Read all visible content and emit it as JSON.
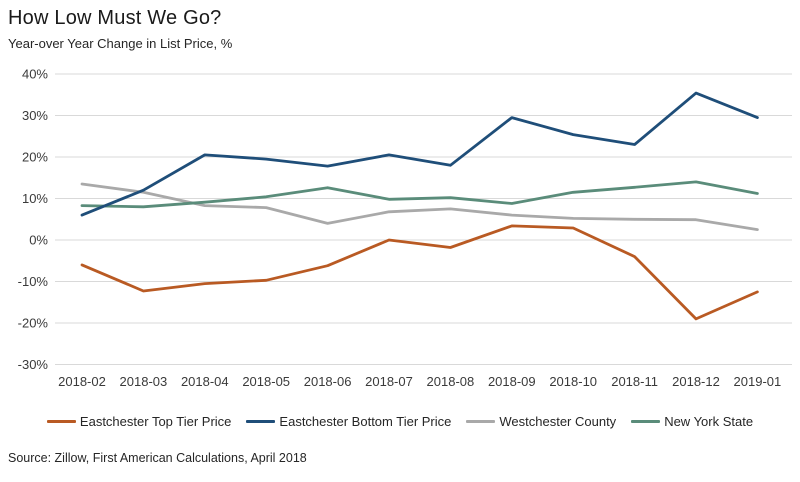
{
  "header": {
    "title": "How Low Must We Go?",
    "subtitle": "Year-over Year Change in List Price, %"
  },
  "chart_data": {
    "type": "line",
    "title": "How Low Must We Go?",
    "subtitle": "Year-over Year Change in List Price, %",
    "xlabel": "",
    "ylabel": "Year-over Year Change in List Price, %",
    "categories": [
      "2018-02",
      "2018-03",
      "2018-04",
      "2018-05",
      "2018-06",
      "2018-07",
      "2018-08",
      "2018-09",
      "2018-10",
      "2018-11",
      "2018-12",
      "2019-01"
    ],
    "series": [
      {
        "name": "Eastchester Top Tier Price",
        "color": "#B95A23",
        "values": [
          -6.0,
          -12.3,
          -10.5,
          -9.7,
          -6.2,
          0.0,
          -1.8,
          3.4,
          2.9,
          -4.0,
          -19.0,
          -12.5
        ]
      },
      {
        "name": "Eastchester Bottom Tier Price",
        "color": "#1F4E79",
        "values": [
          6.0,
          12.0,
          20.5,
          19.5,
          17.8,
          20.5,
          18.0,
          29.5,
          25.4,
          23.0,
          35.4,
          29.5
        ]
      },
      {
        "name": "Westchester County",
        "color": "#A9A9A9",
        "values": [
          13.5,
          11.5,
          8.3,
          7.8,
          4.0,
          6.8,
          7.5,
          6.0,
          5.2,
          5.0,
          4.9,
          2.5
        ]
      },
      {
        "name": "New York State",
        "color": "#5A8C7A",
        "values": [
          8.3,
          8.0,
          9.1,
          10.4,
          12.6,
          9.8,
          10.2,
          8.8,
          11.5,
          12.7,
          14.0,
          11.2
        ]
      }
    ],
    "y_ticks": [
      "40%",
      "30%",
      "20%",
      "10%",
      "0%",
      "-10%",
      "-20%",
      "-30%"
    ],
    "y_tick_values": [
      40,
      30,
      20,
      10,
      0,
      -10,
      -20,
      -30
    ],
    "ylim": [
      -30,
      40
    ],
    "grid": "horizontal-only",
    "gridline_color": "#D9D9D9",
    "axis_text_color": "#3A3A3A",
    "legend_position": "bottom"
  },
  "footer": {
    "source": "Source: Zillow, First American Calculations, April 2018"
  }
}
